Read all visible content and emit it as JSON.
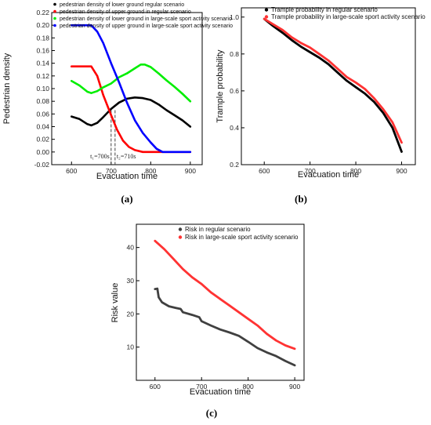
{
  "chart_data": [
    {
      "type": "line",
      "panel_label": "(a)",
      "xlabel": "Evacuation time",
      "ylabel": "Pedestrian density",
      "xlim": [
        550,
        930
      ],
      "ylim": [
        -0.02,
        0.22
      ],
      "x_ticks": [
        600,
        700,
        800,
        900
      ],
      "y_ticks": [
        -0.02,
        0.0,
        0.02,
        0.04,
        0.06,
        0.08,
        0.1,
        0.12,
        0.14,
        0.16,
        0.18,
        0.2,
        0.22
      ],
      "legend_position": "top-left",
      "annotations": [
        {
          "text": "t₁=700s",
          "x": 700
        },
        {
          "text": "t₂=710s",
          "x": 710
        }
      ],
      "series": [
        {
          "name": "pedestrian density of lower ground regular scenario",
          "color": "#000000",
          "points": [
            [
              600,
              0.056
            ],
            [
              620,
              0.052
            ],
            [
              640,
              0.044
            ],
            [
              650,
              0.042
            ],
            [
              665,
              0.046
            ],
            [
              680,
              0.055
            ],
            [
              700,
              0.068
            ],
            [
              720,
              0.078
            ],
            [
              740,
              0.084
            ],
            [
              760,
              0.086
            ],
            [
              780,
              0.085
            ],
            [
              800,
              0.082
            ],
            [
              820,
              0.075
            ],
            [
              840,
              0.066
            ],
            [
              860,
              0.058
            ],
            [
              880,
              0.05
            ],
            [
              900,
              0.04
            ]
          ]
        },
        {
          "name": "pedestrian density of upper ground in regular scenario",
          "color": "#ff0000",
          "points": [
            [
              600,
              0.135
            ],
            [
              620,
              0.135
            ],
            [
              640,
              0.135
            ],
            [
              650,
              0.135
            ],
            [
              665,
              0.12
            ],
            [
              680,
              0.09
            ],
            [
              700,
              0.058
            ],
            [
              715,
              0.035
            ],
            [
              730,
              0.018
            ],
            [
              745,
              0.008
            ],
            [
              760,
              0.003
            ],
            [
              780,
              0.0
            ],
            [
              800,
              0.0
            ],
            [
              850,
              0.0
            ],
            [
              900,
              0.0
            ]
          ]
        },
        {
          "name": "pedestrian density of lower ground in large-scale sport activity scenario",
          "color": "#00ee00",
          "points": [
            [
              600,
              0.112
            ],
            [
              620,
              0.105
            ],
            [
              640,
              0.095
            ],
            [
              650,
              0.093
            ],
            [
              665,
              0.096
            ],
            [
              680,
              0.102
            ],
            [
              700,
              0.108
            ],
            [
              720,
              0.118
            ],
            [
              740,
              0.124
            ],
            [
              760,
              0.132
            ],
            [
              775,
              0.138
            ],
            [
              785,
              0.138
            ],
            [
              800,
              0.134
            ],
            [
              820,
              0.124
            ],
            [
              840,
              0.113
            ],
            [
              860,
              0.103
            ],
            [
              880,
              0.092
            ],
            [
              900,
              0.08
            ]
          ]
        },
        {
          "name": "pedestrian density of upper ground in large-scale sport activity scenario",
          "color": "#0000ff",
          "points": [
            [
              600,
              0.2
            ],
            [
              620,
              0.2
            ],
            [
              640,
              0.2
            ],
            [
              650,
              0.2
            ],
            [
              665,
              0.19
            ],
            [
              680,
              0.172
            ],
            [
              700,
              0.14
            ],
            [
              720,
              0.11
            ],
            [
              740,
              0.078
            ],
            [
              760,
              0.05
            ],
            [
              780,
              0.03
            ],
            [
              800,
              0.015
            ],
            [
              815,
              0.005
            ],
            [
              830,
              0.0
            ],
            [
              850,
              0.0
            ],
            [
              900,
              0.0
            ]
          ]
        }
      ]
    },
    {
      "type": "line",
      "panel_label": "(b)",
      "xlabel": "Evacuation time",
      "ylabel": "Trample probability",
      "xlim": [
        550,
        930
      ],
      "ylim": [
        0.2,
        1.05
      ],
      "x_ticks": [
        600,
        700,
        800,
        900
      ],
      "y_ticks": [
        0.2,
        0.4,
        0.6,
        0.8,
        1.0
      ],
      "legend_position": "top-right",
      "series": [
        {
          "name": "Trample probability in  regular scenario",
          "color": "#000000",
          "points": [
            [
              600,
              0.99
            ],
            [
              620,
              0.95
            ],
            [
              640,
              0.915
            ],
            [
              660,
              0.875
            ],
            [
              680,
              0.84
            ],
            [
              700,
              0.81
            ],
            [
              720,
              0.78
            ],
            [
              740,
              0.745
            ],
            [
              760,
              0.7
            ],
            [
              780,
              0.655
            ],
            [
              800,
              0.62
            ],
            [
              820,
              0.585
            ],
            [
              840,
              0.54
            ],
            [
              860,
              0.48
            ],
            [
              880,
              0.4
            ],
            [
              900,
              0.27
            ]
          ]
        },
        {
          "name": "Trample probability in large-scale sport activity scenario",
          "color": "#ff3333",
          "points": [
            [
              600,
              0.99
            ],
            [
              620,
              0.96
            ],
            [
              640,
              0.93
            ],
            [
              660,
              0.89
            ],
            [
              680,
              0.86
            ],
            [
              700,
              0.835
            ],
            [
              720,
              0.8
            ],
            [
              740,
              0.765
            ],
            [
              760,
              0.72
            ],
            [
              780,
              0.675
            ],
            [
              800,
              0.645
            ],
            [
              820,
              0.61
            ],
            [
              840,
              0.56
            ],
            [
              860,
              0.5
            ],
            [
              880,
              0.43
            ],
            [
              900,
              0.32
            ]
          ]
        }
      ]
    },
    {
      "type": "line",
      "panel_label": "(c)",
      "xlabel": "Evacuation time",
      "ylabel": "Risk value",
      "xlim": [
        560,
        920
      ],
      "ylim": [
        0,
        47
      ],
      "x_ticks": [
        600,
        700,
        800,
        900
      ],
      "y_ticks": [
        10,
        20,
        30,
        40
      ],
      "legend_position": "top-right",
      "series": [
        {
          "name": "Risk in regular scenario",
          "color": "#404040",
          "points": [
            [
              600,
              27.5
            ],
            [
              605,
              27.6
            ],
            [
              608,
              25.0
            ],
            [
              615,
              23.5
            ],
            [
              630,
              22.3
            ],
            [
              645,
              21.8
            ],
            [
              655,
              21.5
            ],
            [
              660,
              20.5
            ],
            [
              680,
              19.7
            ],
            [
              695,
              19.0
            ],
            [
              700,
              17.8
            ],
            [
              720,
              16.5
            ],
            [
              740,
              15.3
            ],
            [
              760,
              14.4
            ],
            [
              780,
              13.4
            ],
            [
              800,
              11.6
            ],
            [
              820,
              9.7
            ],
            [
              840,
              8.4
            ],
            [
              860,
              7.3
            ],
            [
              880,
              5.8
            ],
            [
              900,
              4.5
            ]
          ]
        },
        {
          "name": "Risk in  large-scale sport activity scenario",
          "color": "#ff3333",
          "points": [
            [
              600,
              42.0
            ],
            [
              620,
              39.5
            ],
            [
              640,
              36.5
            ],
            [
              660,
              33.5
            ],
            [
              680,
              31.0
            ],
            [
              700,
              29.0
            ],
            [
              720,
              26.5
            ],
            [
              740,
              24.5
            ],
            [
              760,
              22.5
            ],
            [
              780,
              20.5
            ],
            [
              800,
              18.5
            ],
            [
              820,
              16.5
            ],
            [
              840,
              14.0
            ],
            [
              860,
              12.0
            ],
            [
              880,
              10.5
            ],
            [
              900,
              9.5
            ]
          ]
        }
      ]
    }
  ]
}
